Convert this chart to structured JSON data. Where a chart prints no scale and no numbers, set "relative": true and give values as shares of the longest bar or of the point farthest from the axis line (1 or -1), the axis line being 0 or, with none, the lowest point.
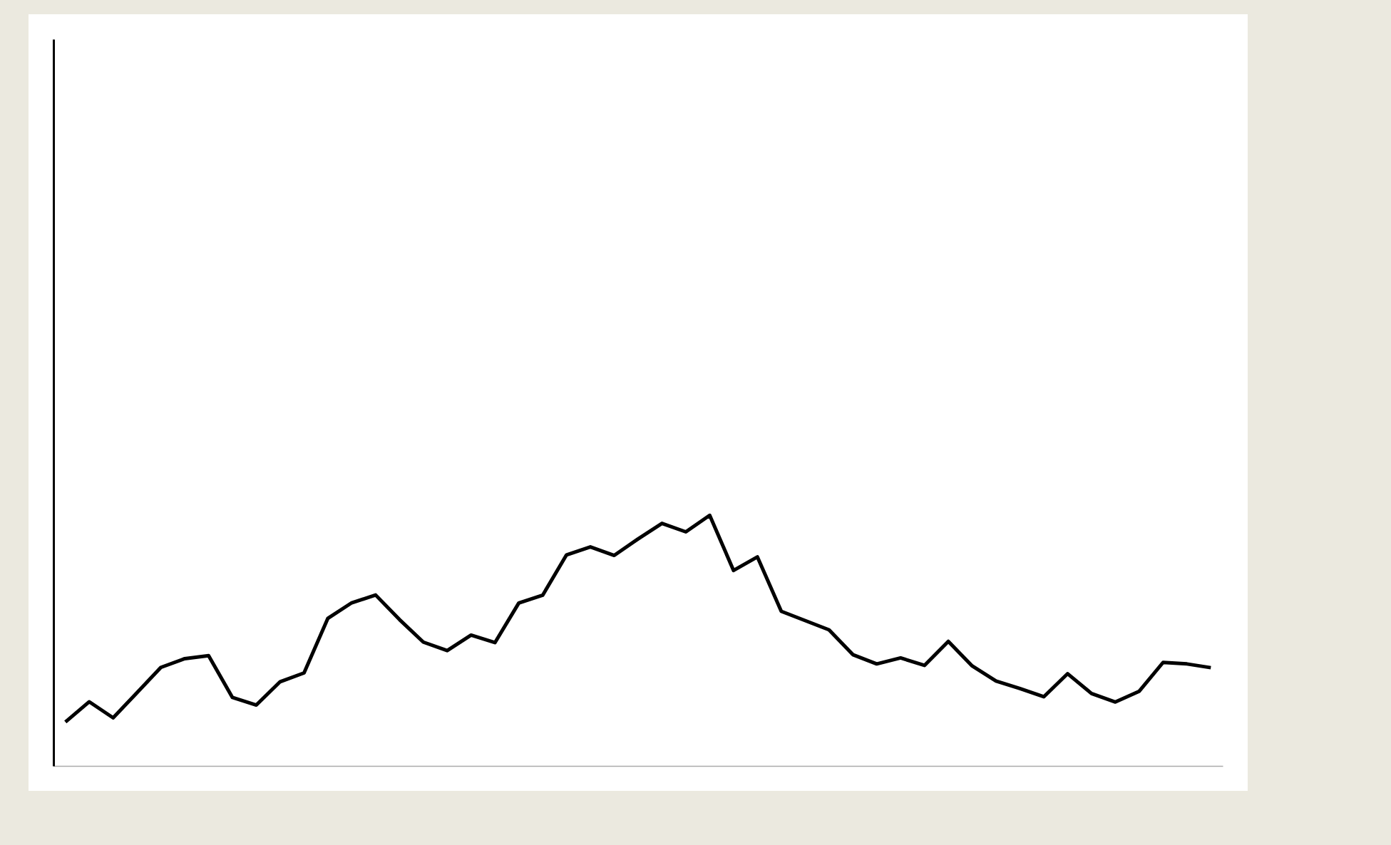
{
  "chart_data": {
    "type": "line",
    "relative": true,
    "tick_labels": false,
    "grid": false,
    "marker": "none",
    "line_style": "solid",
    "categories": [
      null,
      null,
      null,
      null,
      null,
      null,
      null,
      null,
      null,
      null,
      null,
      null,
      null,
      null,
      null,
      null,
      null,
      null,
      null,
      null,
      null,
      null,
      null,
      null,
      null,
      null,
      null,
      null,
      null,
      null,
      null,
      null,
      null,
      null,
      null,
      null,
      null,
      null,
      null,
      null,
      null,
      null,
      null,
      null,
      null,
      null,
      null,
      null,
      null
    ],
    "series": [
      {
        "color": "#000000",
        "values": [
          0.175,
          0.256,
          0.192,
          0.292,
          0.393,
          0.428,
          0.44,
          0.273,
          0.243,
          0.336,
          0.371,
          0.589,
          0.651,
          0.682,
          0.584,
          0.494,
          0.46,
          0.522,
          0.492,
          0.65,
          0.681,
          0.842,
          0.874,
          0.84,
          0.906,
          0.968,
          0.934,
          1,
          0.78,
          0.834,
          0.617,
          0.58,
          0.543,
          0.444,
          0.407,
          0.431,
          0.401,
          0.497,
          0.399,
          0.339,
          0.309,
          0.276,
          0.368,
          0.289,
          0.255,
          0.298,
          0.413,
          0.407,
          0.392
        ]
      }
    ]
  }
}
